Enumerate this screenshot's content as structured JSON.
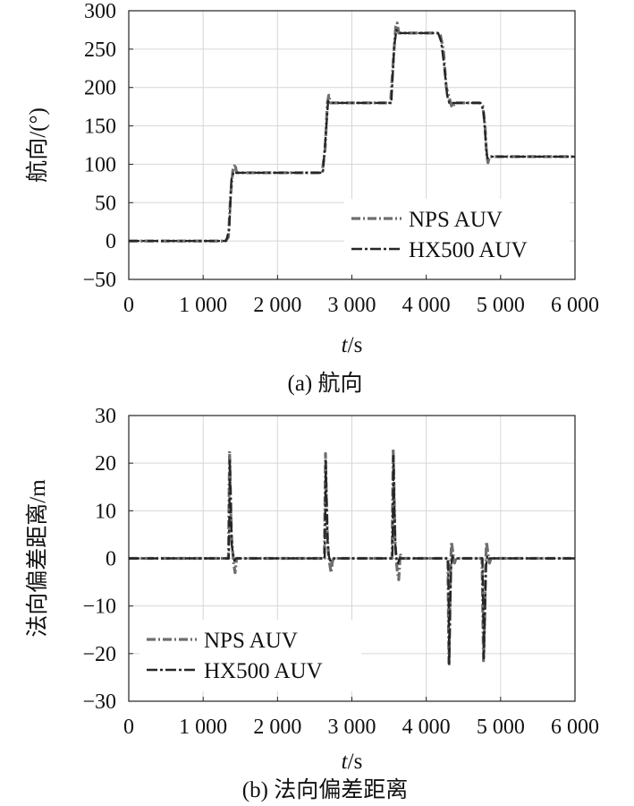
{
  "chart_data": [
    {
      "type": "line",
      "caption": "(a) 航向",
      "xlabel": {
        "var": "t",
        "unit": "/s"
      },
      "ylabel": "航向/(°)",
      "xlim": [
        0,
        6000
      ],
      "ylim": [
        -50,
        300
      ],
      "xticks": [
        0,
        1000,
        2000,
        3000,
        4000,
        5000,
        6000
      ],
      "xtick_labels": [
        "0",
        "1 000",
        "2 000",
        "3 000",
        "4 000",
        "5 000",
        "6 000"
      ],
      "yticks": [
        -50,
        0,
        50,
        100,
        150,
        200,
        250,
        300
      ],
      "ytick_labels": [
        "−50",
        "0",
        "50",
        "100",
        "150",
        "200",
        "250",
        "300"
      ],
      "grid": true,
      "legend_position": "bottom-right",
      "series": [
        {
          "name": "NPS AUV",
          "color": "#6e6e6e",
          "x": [
            0,
            1300,
            1340,
            1370,
            1400,
            1430,
            1450,
            2600,
            2640,
            2670,
            2690,
            2710,
            3520,
            3560,
            3590,
            3610,
            3630,
            4150,
            4190,
            4230,
            4270,
            4300,
            4340,
            4360,
            4380,
            4720,
            4760,
            4790,
            4810,
            4830,
            4850,
            6000
          ],
          "y": [
            0,
            0,
            5,
            60,
            92,
            100,
            89,
            89,
            120,
            180,
            190,
            180,
            180,
            240,
            280,
            284,
            271,
            271,
            268,
            250,
            200,
            190,
            176,
            174,
            180,
            180,
            176,
            150,
            115,
            102,
            110,
            110
          ]
        },
        {
          "name": "HX500 AUV",
          "color": "#262626",
          "x": [
            0,
            1310,
            1350,
            1380,
            1410,
            1440,
            2610,
            2650,
            2680,
            2700,
            3530,
            3570,
            3600,
            3630,
            4160,
            4200,
            4240,
            4280,
            4310,
            4350,
            4730,
            4770,
            4800,
            4820,
            4850,
            6000
          ],
          "y": [
            0,
            0,
            15,
            80,
            90,
            89,
            89,
            140,
            182,
            180,
            180,
            255,
            275,
            271,
            271,
            260,
            230,
            190,
            180,
            180,
            180,
            170,
            130,
            108,
            110,
            110
          ]
        }
      ]
    },
    {
      "type": "line",
      "caption": "(b) 法向偏差距离",
      "xlabel": {
        "var": "t",
        "unit": "/s"
      },
      "ylabel": "法向偏差距离/m",
      "xlim": [
        0,
        6000
      ],
      "ylim": [
        -30,
        30
      ],
      "xticks": [
        0,
        1000,
        2000,
        3000,
        4000,
        5000,
        6000
      ],
      "xtick_labels": [
        "0",
        "1 000",
        "2 000",
        "3 000",
        "4 000",
        "5 000",
        "6 000"
      ],
      "yticks": [
        -30,
        -20,
        -10,
        0,
        10,
        20,
        30
      ],
      "ytick_labels": [
        "−30",
        "−20",
        "−10",
        "0",
        "10",
        "20",
        "30"
      ],
      "grid": true,
      "legend_position": "bottom-left",
      "series": [
        {
          "name": "NPS AUV",
          "color": "#6e6e6e",
          "x": [
            0,
            1340,
            1355,
            1365,
            1380,
            1395,
            1410,
            1430,
            1450,
            1470,
            2630,
            2645,
            2655,
            2670,
            2685,
            2700,
            2720,
            2740,
            2760,
            3540,
            3555,
            3565,
            3580,
            3595,
            3610,
            3630,
            3650,
            3670,
            4290,
            4305,
            4315,
            4325,
            4340,
            4360,
            4380,
            4400,
            4750,
            4770,
            4785,
            4795,
            4810,
            4830,
            4850,
            4870,
            6000
          ],
          "y": [
            0,
            0,
            22.5,
            16,
            5,
            2,
            -1,
            -3,
            0,
            0,
            0,
            22,
            15,
            5,
            1,
            -1,
            -3,
            -0.5,
            0,
            0,
            23,
            16,
            4,
            0,
            -2.5,
            -4.5,
            1,
            0,
            0,
            -22,
            -14,
            -3,
            3.5,
            1,
            -1,
            0,
            0,
            -21.5,
            -13,
            -3,
            3.5,
            1,
            -1,
            0,
            0
          ]
        },
        {
          "name": "HX500 AUV",
          "color": "#262626",
          "x": [
            0,
            1345,
            1360,
            1370,
            1385,
            1400,
            1420,
            1440,
            2635,
            2650,
            2660,
            2675,
            2690,
            2710,
            2730,
            3545,
            3560,
            3570,
            3585,
            3600,
            3620,
            3640,
            4295,
            4310,
            4320,
            4335,
            4350,
            4370,
            4755,
            4775,
            4790,
            4805,
            4820,
            4840,
            6000
          ],
          "y": [
            0,
            0,
            21,
            13,
            3,
            1,
            -0.5,
            0,
            0,
            20.5,
            12,
            3,
            0.5,
            -0.5,
            0,
            0,
            21.5,
            12,
            2.5,
            0,
            -1,
            0,
            0,
            -22.5,
            -12,
            -2,
            0.5,
            0,
            0,
            -21,
            -11,
            -1.5,
            0.5,
            0,
            0
          ]
        }
      ]
    }
  ]
}
